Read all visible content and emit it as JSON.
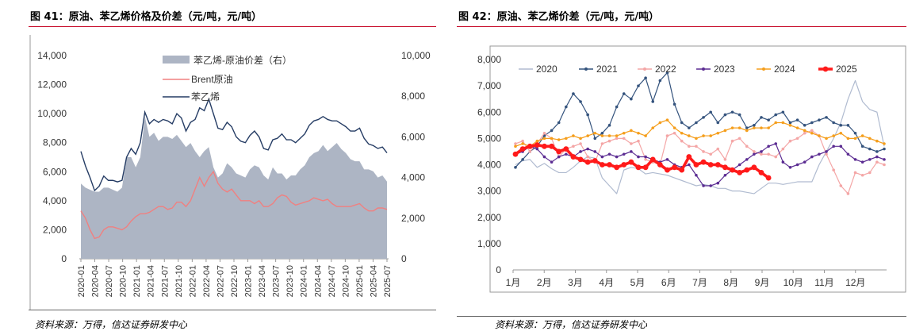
{
  "left": {
    "title": "图 41：原油、苯乙烯价格及价差（元/吨，元/吨）",
    "source": "资料来源：万得，信达证券研发中心",
    "chart_data": {
      "type": "line",
      "left_axis": {
        "ticks": [
          "0",
          "2,000",
          "4,000",
          "6,000",
          "8,000",
          "10,000",
          "12,000",
          "14,000"
        ],
        "ylim": [
          0,
          14000
        ]
      },
      "right_axis": {
        "ticks": [
          "0",
          "2,000",
          "4,000",
          "6,000",
          "8,000",
          "10,000"
        ],
        "ylim": [
          0,
          10000
        ]
      },
      "x_ticks": [
        "2020-01",
        "2020-04",
        "2020-07",
        "2020-10",
        "2021-01",
        "2021-04",
        "2021-07",
        "2021-10",
        "2022-01",
        "2022-04",
        "2022-07",
        "2022-10",
        "2023-01",
        "2023-04",
        "2023-07",
        "2023-10",
        "2024-01",
        "2024-04",
        "2024-07",
        "2024-10",
        "2025-01",
        "2025-04",
        "2025-07"
      ],
      "legend": {
        "position": "top",
        "entries": [
          "苯乙烯-原油价差（右）",
          "Brent原油",
          "苯乙烯"
        ]
      },
      "colors": {
        "spread": "#adb5c4",
        "brent": "#f08080",
        "styrene": "#253c64"
      },
      "x": [
        "2020-01",
        "2020-02",
        "2020-03",
        "2020-04",
        "2020-05",
        "2020-06",
        "2020-07",
        "2020-08",
        "2020-09",
        "2020-10",
        "2020-11",
        "2020-12",
        "2021-01",
        "2021-02",
        "2021-03",
        "2021-04",
        "2021-05",
        "2021-06",
        "2021-07",
        "2021-08",
        "2021-09",
        "2021-10",
        "2021-11",
        "2021-12",
        "2022-01",
        "2022-02",
        "2022-03",
        "2022-04",
        "2022-05",
        "2022-06",
        "2022-07",
        "2022-08",
        "2022-09",
        "2022-10",
        "2022-11",
        "2022-12",
        "2023-01",
        "2023-02",
        "2023-03",
        "2023-04",
        "2023-05",
        "2023-06",
        "2023-07",
        "2023-08",
        "2023-09",
        "2023-10",
        "2023-11",
        "2023-12",
        "2024-01",
        "2024-02",
        "2024-03",
        "2024-04",
        "2024-05",
        "2024-06",
        "2024-07",
        "2024-08",
        "2024-09",
        "2024-10",
        "2024-11",
        "2024-12",
        "2025-01",
        "2025-02",
        "2025-03",
        "2025-04",
        "2025-05",
        "2025-06",
        "2025-07",
        "2025-08"
      ],
      "series": [
        {
          "name": "苯乙烯",
          "axis": "left",
          "values": [
            7400,
            6400,
            5600,
            4700,
            5000,
            5700,
            5400,
            5400,
            5300,
            5400,
            7000,
            7600,
            7200,
            8000,
            10100,
            9300,
            9600,
            9400,
            9600,
            9500,
            9300,
            10000,
            9700,
            8800,
            9400,
            9600,
            10400,
            10200,
            11000,
            10000,
            9000,
            8900,
            9400,
            9100,
            8400,
            8100,
            8000,
            8500,
            8800,
            8400,
            7600,
            7500,
            8200,
            8300,
            8600,
            8200,
            8200,
            8000,
            8300,
            8600,
            9200,
            9500,
            9600,
            9800,
            9600,
            9500,
            9500,
            9300,
            9100,
            8800,
            8800,
            9000,
            8300,
            7900,
            7800,
            7600,
            7700,
            7300
          ]
        },
        {
          "name": "Brent原油",
          "axis": "left",
          "values": [
            3300,
            2800,
            2000,
            1400,
            1500,
            2000,
            2200,
            2200,
            2100,
            2000,
            2200,
            2600,
            2900,
            3100,
            3100,
            3200,
            3400,
            3600,
            3600,
            3400,
            3500,
            3900,
            3900,
            3600,
            4000,
            4800,
            5600,
            5000,
            5600,
            6000,
            5200,
            4800,
            4600,
            4800,
            4400,
            4000,
            4000,
            4000,
            3800,
            4000,
            3600,
            3600,
            3800,
            4200,
            4400,
            4300,
            3900,
            3700,
            3800,
            3900,
            4000,
            4200,
            4100,
            4000,
            4100,
            3800,
            3600,
            3600,
            3600,
            3600,
            3700,
            3800,
            3500,
            3300,
            3300,
            3500,
            3500,
            3400
          ]
        },
        {
          "name": "苯乙烯-原油价差（右）",
          "axis": "right",
          "values": [
            3700,
            3500,
            3400,
            3300,
            3300,
            3500,
            3500,
            3400,
            3300,
            3500,
            5000,
            5000,
            4500,
            5000,
            7000,
            6000,
            6200,
            5800,
            6000,
            6000,
            5900,
            6100,
            5800,
            5500,
            5700,
            5300,
            5000,
            5300,
            5500,
            4500,
            4000,
            4200,
            4700,
            4500,
            4200,
            4100,
            4000,
            4400,
            4600,
            4500,
            4100,
            3900,
            4500,
            4200,
            4200,
            3900,
            4100,
            4100,
            4400,
            4600,
            5000,
            5200,
            5300,
            5600,
            5300,
            5500,
            5700,
            5400,
            5200,
            4900,
            4800,
            4800,
            4400,
            4400,
            4300,
            4000,
            4100,
            3800
          ]
        }
      ]
    }
  },
  "right": {
    "title": "图 42：原油、苯乙烯价差（元/吨，元/吨）",
    "source": "资料来源：万得，信达证券研发中心",
    "chart_data": {
      "type": "line",
      "y_ticks": [
        "0",
        "1,000",
        "2,000",
        "3,000",
        "4,000",
        "5,000",
        "6,000",
        "7,000",
        "8,000"
      ],
      "ylim": [
        0,
        8000
      ],
      "x_ticks": [
        "1月",
        "2月",
        "3月",
        "4月",
        "5月",
        "6月",
        "7月",
        "8月",
        "9月",
        "10月",
        "11月",
        "12月"
      ],
      "legend": {
        "position": "top"
      },
      "x_weeks": "week of year, 1 to 52",
      "series": [
        {
          "name": "2020",
          "color": "#b0bbd0",
          "width": 1.2,
          "marker": "none",
          "values": [
            4000,
            4150,
            4200,
            3900,
            4050,
            3850,
            3700,
            3700,
            3900,
            4150,
            4300,
            4250,
            3500,
            3200,
            2900,
            3800,
            3900,
            3850,
            3650,
            3700,
            3650,
            3600,
            3500,
            3400,
            3300,
            3200,
            3250,
            3200,
            3100,
            3100,
            3000,
            3000,
            2950,
            2900,
            3100,
            3300,
            3300,
            3250,
            3300,
            3350,
            3350,
            3350,
            4000,
            4500,
            5000,
            5600,
            6500,
            7200,
            6400,
            6100,
            6000,
            4700
          ]
        },
        {
          "name": "2021",
          "color": "#34537d",
          "width": 1.2,
          "marker": "dot",
          "values": [
            3900,
            4200,
            4500,
            4700,
            5100,
            5300,
            5600,
            6200,
            6700,
            6400,
            5900,
            5000,
            5200,
            5500,
            6200,
            6700,
            6500,
            7000,
            7300,
            6400,
            7200,
            7500,
            6300,
            5600,
            5400,
            5600,
            5800,
            6000,
            5600,
            5900,
            6000,
            5900,
            5400,
            5500,
            5800,
            5700,
            5900,
            6000,
            5600,
            5700,
            5500,
            5600,
            5700,
            5800,
            5600,
            5500,
            5500,
            5200,
            4700,
            4600,
            4500,
            4600
          ]
        },
        {
          "name": "2022",
          "color": "#f4a6a6",
          "width": 1.2,
          "marker": "dot",
          "values": [
            4800,
            4900,
            4500,
            4800,
            5200,
            5000,
            4300,
            4600,
            4700,
            4800,
            4300,
            4100,
            4800,
            4900,
            5000,
            5000,
            4800,
            4900,
            4200,
            4100,
            4000,
            5100,
            5200,
            4900,
            4700,
            4700,
            4500,
            4400,
            4600,
            4200,
            4900,
            5000,
            4700,
            4500,
            4400,
            4400,
            4300,
            4600,
            4900,
            5000,
            5200,
            5300,
            5100,
            4400,
            3800,
            3200,
            2900,
            3700,
            3600,
            3700,
            4100,
            4000
          ]
        },
        {
          "name": "2023",
          "color": "#5b2c92",
          "width": 1.2,
          "marker": "dot",
          "values": [
            4400,
            4500,
            4700,
            4600,
            4300,
            4100,
            4300,
            4400,
            4300,
            4500,
            4600,
            4500,
            4300,
            4400,
            4300,
            4400,
            4500,
            4300,
            4300,
            4200,
            4100,
            4200,
            4000,
            3900,
            4000,
            3600,
            3200,
            3200,
            3300,
            3600,
            3800,
            4000,
            4200,
            4400,
            4500,
            4700,
            4800,
            4100,
            3900,
            4000,
            4100,
            4300,
            4400,
            4500,
            4700,
            4700,
            4400,
            4200,
            4100,
            4200,
            4300,
            4200
          ]
        },
        {
          "name": "2024",
          "color": "#f59e1b",
          "width": 1.2,
          "marker": "dot",
          "values": [
            4700,
            4800,
            4700,
            4900,
            5000,
            5000,
            4950,
            5000,
            5100,
            5000,
            5100,
            5200,
            5100,
            5100,
            5100,
            5200,
            5300,
            5200,
            5100,
            5400,
            5600,
            5700,
            5400,
            5200,
            5100,
            5000,
            5100,
            5100,
            5200,
            5300,
            5400,
            5400,
            5300,
            5400,
            5400,
            5400,
            5600,
            5600,
            5500,
            5400,
            5300,
            5200,
            5100,
            5000,
            5100,
            5200,
            5000,
            5000,
            5100,
            5000,
            4900,
            4800
          ]
        },
        {
          "name": "2025",
          "color": "#ff1a1a",
          "width": 3.6,
          "marker": "dot",
          "values": [
            4400,
            4600,
            4700,
            4750,
            4700,
            4700,
            4500,
            4600,
            4300,
            4200,
            4100,
            4150,
            4000,
            4000,
            3900,
            4000,
            4100,
            3900,
            3900,
            4200,
            4000,
            3800,
            3900,
            3800,
            4300,
            4000,
            4100,
            4000,
            4000,
            3900,
            3800,
            3700,
            3800,
            3900,
            3700,
            3500
          ]
        }
      ]
    }
  }
}
